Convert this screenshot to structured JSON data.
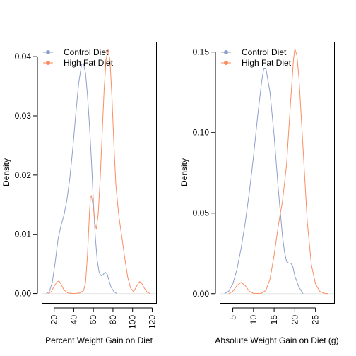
{
  "colors": {
    "control": "#8DA0CB",
    "high_fat": "#FC8D62"
  },
  "chart_data": [
    {
      "type": "line",
      "xlabel": "Percent Weight Gain on Diet",
      "ylabel": "Density",
      "xlim": [
        8,
        124
      ],
      "ylim": [
        -0.0016,
        0.0424
      ],
      "xticks": [
        20,
        40,
        60,
        80,
        100,
        120
      ],
      "yticks": [
        0.0,
        0.01,
        0.02,
        0.03,
        0.04
      ],
      "ytick_labels": [
        "0.00",
        "0.01",
        "0.02",
        "0.03",
        "0.04"
      ],
      "legend_position": "top-left",
      "series": [
        {
          "name": "Control Diet",
          "color": "#8DA0CB",
          "points": [
            [
              12,
              0.0
            ],
            [
              15,
              0.0003
            ],
            [
              18,
              0.0018
            ],
            [
              21,
              0.0052
            ],
            [
              24,
              0.0092
            ],
            [
              27,
              0.0115
            ],
            [
              30,
              0.0132
            ],
            [
              33,
              0.0158
            ],
            [
              36,
              0.0195
            ],
            [
              39,
              0.0245
            ],
            [
              42,
              0.0302
            ],
            [
              45,
              0.0355
            ],
            [
              48,
              0.0387
            ],
            [
              50,
              0.0388
            ],
            [
              52,
              0.0372
            ],
            [
              54,
              0.0335
            ],
            [
              56,
              0.0285
            ],
            [
              58,
              0.0225
            ],
            [
              60,
              0.0155
            ],
            [
              62,
              0.0095
            ],
            [
              64,
              0.0055
            ],
            [
              66,
              0.0035
            ],
            [
              68,
              0.003
            ],
            [
              70,
              0.0032
            ],
            [
              72,
              0.0036
            ],
            [
              74,
              0.0033
            ],
            [
              76,
              0.0022
            ],
            [
              78,
              0.0011
            ],
            [
              81,
              0.0003
            ],
            [
              84,
              0.0
            ]
          ]
        },
        {
          "name": "High Fat Diet",
          "color": "#FC8D62",
          "points": [
            [
              14,
              0.0
            ],
            [
              17,
              0.0003
            ],
            [
              20,
              0.0012
            ],
            [
              23,
              0.002
            ],
            [
              25,
              0.0021
            ],
            [
              27,
              0.0016
            ],
            [
              30,
              0.0006
            ],
            [
              34,
              0.0001
            ],
            [
              40,
              0.0
            ],
            [
              46,
              0.0001
            ],
            [
              50,
              0.0005
            ],
            [
              52,
              0.0018
            ],
            [
              54,
              0.0065
            ],
            [
              56,
              0.0135
            ],
            [
              57,
              0.0163
            ],
            [
              58,
              0.0165
            ],
            [
              60,
              0.0145
            ],
            [
              62,
              0.0115
            ],
            [
              63,
              0.0109
            ],
            [
              65,
              0.0135
            ],
            [
              67,
              0.0195
            ],
            [
              69,
              0.027
            ],
            [
              71,
              0.0345
            ],
            [
              73,
              0.0395
            ],
            [
              75,
              0.0412
            ],
            [
              77,
              0.0393
            ],
            [
              79,
              0.033
            ],
            [
              81,
              0.025
            ],
            [
              83,
              0.0182
            ],
            [
              86,
              0.0131
            ],
            [
              89,
              0.0096
            ],
            [
              92,
              0.006
            ],
            [
              95,
              0.0028
            ],
            [
              98,
              0.0009
            ],
            [
              101,
              0.0003
            ],
            [
              104,
              0.0012
            ],
            [
              107,
              0.002
            ],
            [
              109,
              0.0018
            ],
            [
              112,
              0.0009
            ],
            [
              115,
              0.0002
            ],
            [
              118,
              0.0
            ]
          ]
        }
      ]
    },
    {
      "type": "line",
      "xlabel": "Absolute Weight Gain on Diet (g)",
      "ylabel": "Density",
      "xlim": [
        2,
        29.5
      ],
      "ylim": [
        -0.0058,
        0.156
      ],
      "xticks": [
        5,
        10,
        15,
        20,
        25
      ],
      "yticks": [
        0.0,
        0.05,
        0.1,
        0.15
      ],
      "ytick_labels": [
        "0.00",
        "0.05",
        "0.10",
        "0.15"
      ],
      "legend_position": "top-left",
      "series": [
        {
          "name": "Control Diet",
          "color": "#8DA0CB",
          "points": [
            [
              3,
              0.0
            ],
            [
              4,
              0.0015
            ],
            [
              5,
              0.006
            ],
            [
              6,
              0.015
            ],
            [
              7,
              0.028
            ],
            [
              8,
              0.044
            ],
            [
              9,
              0.063
            ],
            [
              10,
              0.085
            ],
            [
              11,
              0.11
            ],
            [
              12,
              0.132
            ],
            [
              12.5,
              0.14
            ],
            [
              13,
              0.14
            ],
            [
              14,
              0.125
            ],
            [
              15,
              0.098
            ],
            [
              16,
              0.065
            ],
            [
              17,
              0.036
            ],
            [
              17.5,
              0.026
            ],
            [
              18,
              0.02
            ],
            [
              18.5,
              0.019
            ],
            [
              19,
              0.019
            ],
            [
              19.5,
              0.017
            ],
            [
              20,
              0.011
            ],
            [
              21,
              0.004
            ],
            [
              22,
              0.0
            ]
          ]
        },
        {
          "name": "High Fat Diet",
          "color": "#FC8D62",
          "points": [
            [
              4,
              0.0
            ],
            [
              5,
              0.0015
            ],
            [
              6,
              0.005
            ],
            [
              7,
              0.007
            ],
            [
              8,
              0.005
            ],
            [
              9,
              0.0015
            ],
            [
              10,
              0.0002
            ],
            [
              11,
              0.0001
            ],
            [
              12,
              0.0003
            ],
            [
              13,
              0.002
            ],
            [
              14,
              0.009
            ],
            [
              15,
              0.024
            ],
            [
              16,
              0.042
            ],
            [
              16.5,
              0.05
            ],
            [
              17,
              0.057
            ],
            [
              18,
              0.08
            ],
            [
              19,
              0.12
            ],
            [
              19.7,
              0.146
            ],
            [
              20,
              0.152
            ],
            [
              20.5,
              0.148
            ],
            [
              21,
              0.134
            ],
            [
              22,
              0.09
            ],
            [
              23,
              0.045
            ],
            [
              24,
              0.018
            ],
            [
              25,
              0.006
            ],
            [
              26,
              0.0015
            ],
            [
              27,
              0.0003
            ],
            [
              28,
              0.0
            ]
          ]
        }
      ]
    }
  ]
}
